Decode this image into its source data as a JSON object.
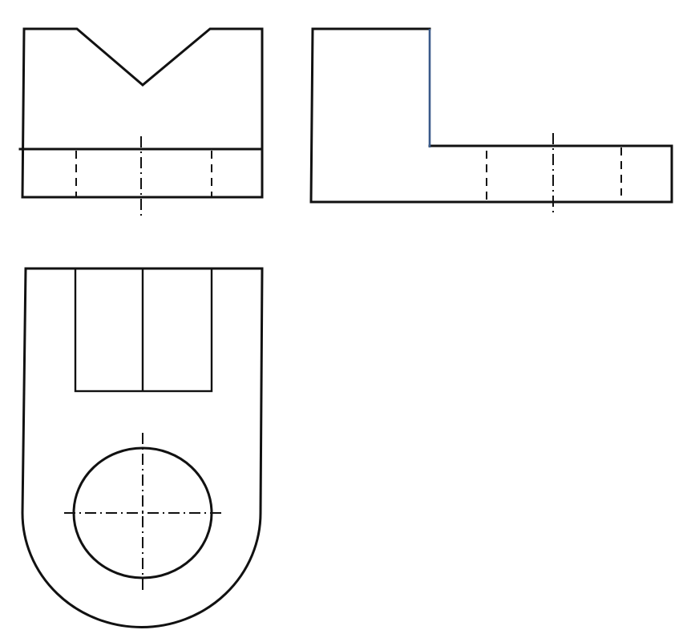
{
  "figure": {
    "views": [
      {
        "view": "front",
        "features": [
          "outline",
          "v-notch",
          "hidden-lines",
          "center-line"
        ]
      },
      {
        "view": "side",
        "features": [
          "outline",
          "step",
          "hidden-lines",
          "center-line"
        ]
      },
      {
        "view": "top",
        "features": [
          "outline",
          "rounded-end",
          "slot",
          "hole",
          "center-lines"
        ]
      }
    ],
    "colors": {
      "line": "#111111",
      "background": "#ffffff",
      "step-edge": "#3a5a8a"
    }
  }
}
